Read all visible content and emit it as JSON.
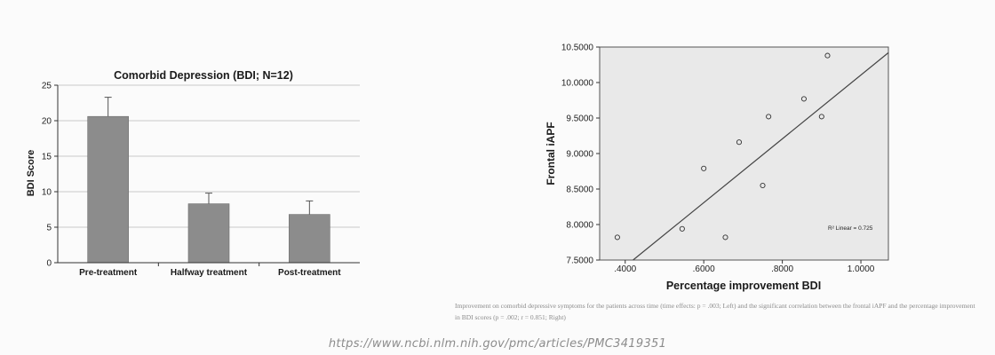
{
  "chart_data": [
    {
      "type": "bar",
      "title": "Comorbid Depression (BDI; N=12)",
      "ylabel": "BDI Score",
      "xlabel": "",
      "categories": [
        "Pre-treatment",
        "Halfway treatment",
        "Post-treatment"
      ],
      "values": [
        20.6,
        8.3,
        6.8
      ],
      "error_upper": [
        23.3,
        9.8,
        8.7
      ],
      "ylim": [
        0,
        25
      ],
      "yticks": [
        0,
        5,
        10,
        15,
        20,
        25
      ],
      "ytick_labels": [
        "0",
        "5",
        "10",
        "15",
        "20",
        "25"
      ],
      "grid": true,
      "bar_color": "#8c8c8c"
    },
    {
      "type": "scatter",
      "xlabel": "Percentage improvement BDI",
      "ylabel": "Frontal iAPF",
      "xlim": [
        0.335,
        1.07
      ],
      "ylim": [
        7.5,
        10.5
      ],
      "xticks": [
        0.4,
        0.6,
        0.8,
        1.0
      ],
      "xtick_labels": [
        ".4000",
        ".6000",
        ".8000",
        "1.0000"
      ],
      "yticks": [
        7.5,
        8.0,
        8.5,
        9.0,
        9.5,
        10.0,
        10.5
      ],
      "ytick_labels": [
        "7.5000",
        "8.0000",
        "8.5000",
        "9.0000",
        "9.5000",
        "10.0000",
        "10.5000"
      ],
      "points": [
        {
          "x": 0.38,
          "y": 7.82
        },
        {
          "x": 0.545,
          "y": 7.94
        },
        {
          "x": 0.6,
          "y": 8.79
        },
        {
          "x": 0.655,
          "y": 7.82
        },
        {
          "x": 0.69,
          "y": 9.16
        },
        {
          "x": 0.75,
          "y": 8.55
        },
        {
          "x": 0.765,
          "y": 9.52
        },
        {
          "x": 0.855,
          "y": 9.77
        },
        {
          "x": 0.9,
          "y": 9.52
        },
        {
          "x": 0.915,
          "y": 10.38
        }
      ],
      "fit_line": {
        "x": [
          0.42,
          1.07
        ],
        "y": [
          7.5,
          10.42
        ]
      },
      "annotation": "R² Linear = 0.725",
      "plot_background": "#e9e9e9"
    }
  ],
  "caption": "Improvement on comorbid depressive symptoms for the patients across time (time effects: p = .003; Left) and the significant correlation between the frontal iAPF and the percentage improvement in BDI scores (p = .002; r = 0.851; Right)",
  "source_url": "https://www.ncbi.nlm.nih.gov/pmc/articles/PMC3419351"
}
